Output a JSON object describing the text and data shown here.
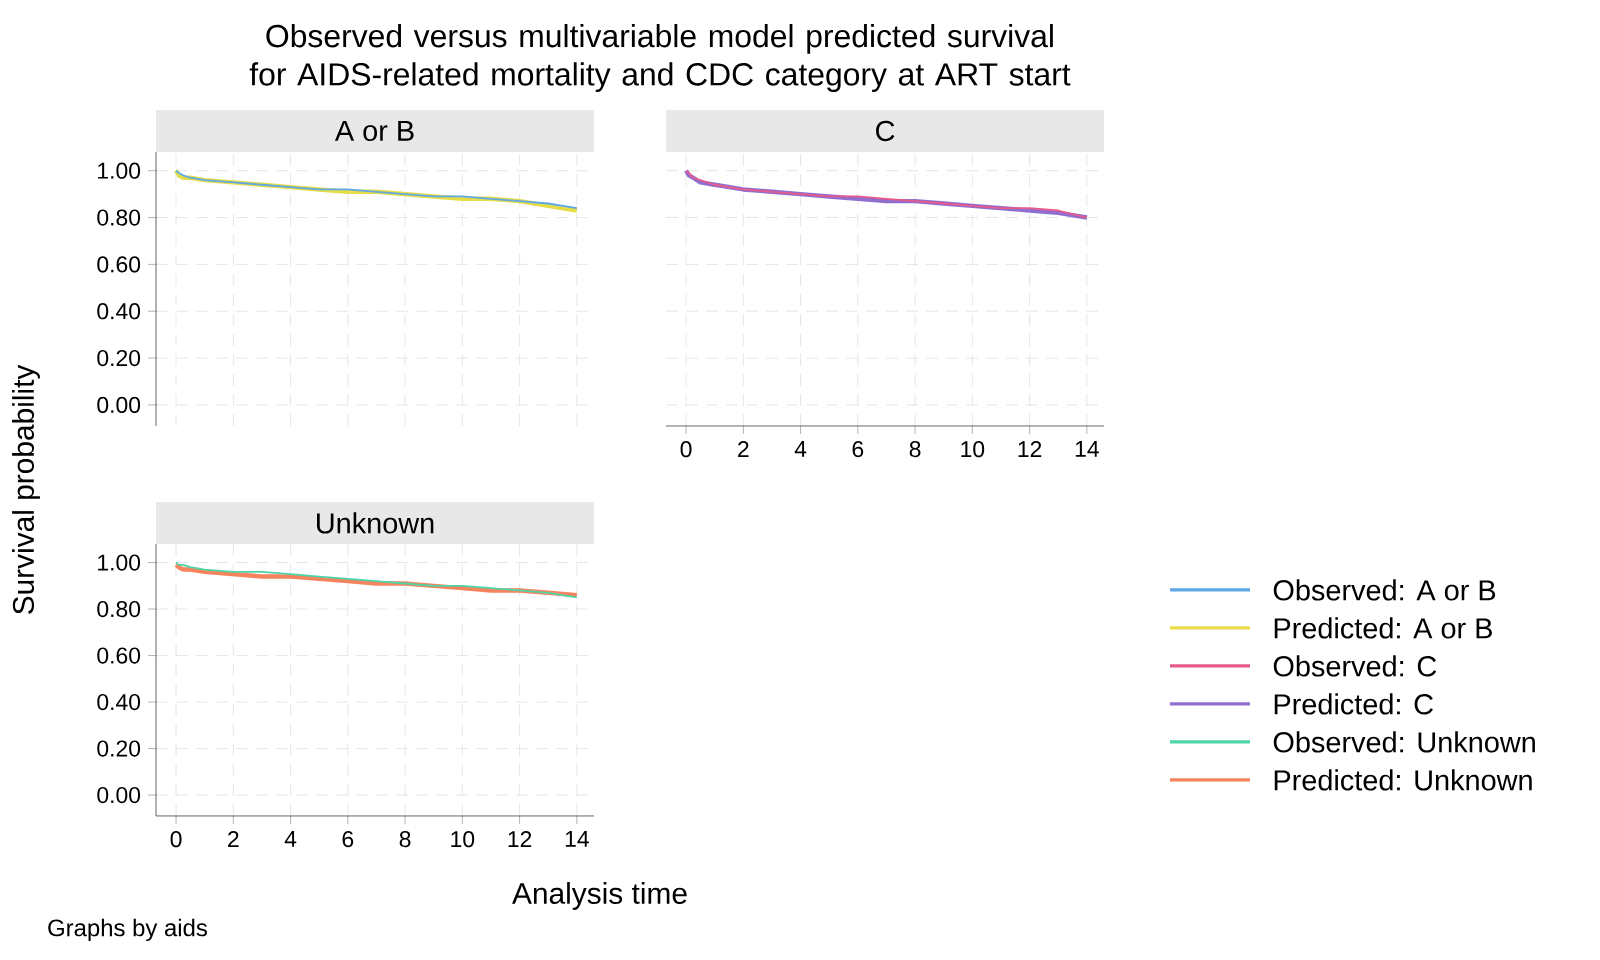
{
  "chart_data": [
    {
      "type": "line",
      "title": "A or B",
      "ylabel": "Survival probability",
      "annotations": [
        "Observed versus multivariable model predicted survival for AIDS-related mortality and CDC category at ART start",
        "Graphs by aids"
      ],
      "xlim": [
        -0.7,
        14.6
      ],
      "ylim": [
        -0.09,
        1.08
      ],
      "xticks": [
        {
          "value": 0,
          "label": null
        },
        {
          "value": 2,
          "label": null
        },
        {
          "value": 4,
          "label": null
        },
        {
          "value": 6,
          "label": null
        },
        {
          "value": 8,
          "label": null
        },
        {
          "value": 10,
          "label": null
        },
        {
          "value": 12,
          "label": null
        },
        {
          "value": 14,
          "label": null
        }
      ],
      "yticks": [
        {
          "value": 0,
          "label": "0.00"
        },
        {
          "value": 0.2,
          "label": "0.20"
        },
        {
          "value": 0.4,
          "label": "0.40"
        },
        {
          "value": 0.6,
          "label": "0.60"
        },
        {
          "value": 0.8,
          "label": "0.80"
        },
        {
          "value": 1,
          "label": "1.00"
        }
      ],
      "tick_labels": "y",
      "grid": true,
      "legend": "right",
      "line_style": "solid",
      "x": [
        0,
        0.1,
        0.25,
        0.5,
        1,
        2,
        3,
        4,
        5,
        6,
        7,
        8,
        9,
        10,
        11,
        12,
        13,
        14
      ],
      "series": [
        {
          "name": "Observed: A or B",
          "color": "#5fa8e8",
          "values": [
            1.0,
            0.99,
            0.98,
            0.97,
            0.96,
            0.95,
            0.94,
            0.93,
            0.92,
            0.92,
            0.91,
            0.9,
            0.89,
            0.89,
            0.88,
            0.87,
            0.86,
            0.84
          ]
        },
        {
          "name": "Predicted: A or B",
          "color": "#e6dc48",
          "values": [
            1.0,
            0.98,
            0.97,
            0.97,
            0.96,
            0.95,
            0.94,
            0.93,
            0.92,
            0.91,
            0.91,
            0.9,
            0.89,
            0.88,
            0.88,
            0.87,
            0.85,
            0.83
          ]
        }
      ]
    },
    {
      "type": "line",
      "title": "C",
      "xlim": [
        -0.7,
        14.6
      ],
      "ylim": [
        -0.09,
        1.08
      ],
      "xticks": [
        0,
        2,
        4,
        6,
        8,
        10,
        12,
        14
      ],
      "yticks": [
        {
          "value": 0,
          "label": null
        },
        {
          "value": 0.2,
          "label": null
        },
        {
          "value": 0.4,
          "label": null
        },
        {
          "value": 0.6,
          "label": null
        },
        {
          "value": 0.8,
          "label": null
        },
        {
          "value": 1,
          "label": null
        }
      ],
      "tick_labels": "x",
      "grid": true,
      "legend": "right",
      "line_style": "solid",
      "x": [
        0,
        0.1,
        0.25,
        0.5,
        1,
        2,
        3,
        4,
        5,
        6,
        7,
        8,
        9,
        10,
        11,
        12,
        13,
        14
      ],
      "series": [
        {
          "name": "Observed: C",
          "color": "#e8598c",
          "values": [
            1.0,
            0.99,
            0.97,
            0.96,
            0.94,
            0.92,
            0.91,
            0.9,
            0.89,
            0.89,
            0.88,
            0.87,
            0.86,
            0.85,
            0.84,
            0.84,
            0.83,
            0.8
          ]
        },
        {
          "name": "Predicted: C",
          "color": "#8e6fcf",
          "values": [
            1.0,
            0.98,
            0.97,
            0.95,
            0.94,
            0.92,
            0.91,
            0.9,
            0.89,
            0.88,
            0.87,
            0.87,
            0.86,
            0.85,
            0.84,
            0.83,
            0.82,
            0.8
          ]
        }
      ]
    },
    {
      "type": "line",
      "title": "Unknown",
      "xlabel": "Analysis time",
      "xlim": [
        -0.7,
        14.6
      ],
      "ylim": [
        -0.09,
        1.08
      ],
      "xticks": [
        0,
        2,
        4,
        6,
        8,
        10,
        12,
        14
      ],
      "yticks": [
        {
          "value": 0,
          "label": "0.00"
        },
        {
          "value": 0.2,
          "label": "0.20"
        },
        {
          "value": 0.4,
          "label": "0.40"
        },
        {
          "value": 0.6,
          "label": "0.60"
        },
        {
          "value": 0.8,
          "label": "0.80"
        },
        {
          "value": 1,
          "label": "1.00"
        }
      ],
      "grid": true,
      "legend": "right",
      "line_style": "solid",
      "x": [
        0,
        0.1,
        0.25,
        0.5,
        1,
        2,
        3,
        4,
        5,
        6,
        7,
        8,
        9,
        10,
        11,
        12,
        13,
        14
      ],
      "series": [
        {
          "name": "Observed: Unknown",
          "color": "#4fd4a6",
          "values": [
            1.0,
            0.99,
            0.99,
            0.98,
            0.97,
            0.96,
            0.96,
            0.95,
            0.94,
            0.93,
            0.92,
            0.91,
            0.9,
            0.9,
            0.89,
            0.88,
            0.87,
            0.85
          ]
        },
        {
          "name": "Predicted: Unknown",
          "color": "#f5845e",
          "values": [
            0.99,
            0.98,
            0.97,
            0.97,
            0.96,
            0.95,
            0.94,
            0.94,
            0.93,
            0.92,
            0.91,
            0.91,
            0.9,
            0.89,
            0.88,
            0.88,
            0.87,
            0.86
          ]
        }
      ]
    }
  ]
}
